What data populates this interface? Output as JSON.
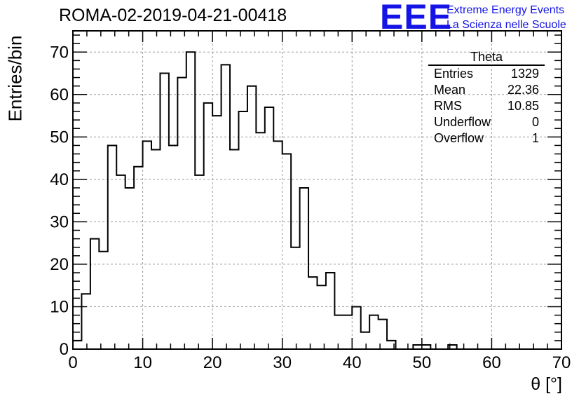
{
  "header": {
    "title": "ROMA-02-2019-04-21-00418",
    "logo_mark": "EEE",
    "logo_line1": "Extreme Energy Events",
    "logo_line2": "La Scienza nelle Scuole"
  },
  "stats_box": {
    "title": "Theta",
    "rows": [
      {
        "label": "Entries",
        "value": "1329"
      },
      {
        "label": "Mean",
        "value": "22.36"
      },
      {
        "label": "RMS",
        "value": "10.85"
      },
      {
        "label": "Underflow",
        "value": "0"
      },
      {
        "label": "Overflow",
        "value": "1"
      }
    ]
  },
  "chart_data": {
    "type": "histogram",
    "xlabel": "θ [°]",
    "ylabel": "Entries/bin",
    "xlim": [
      0,
      70
    ],
    "ylim": [
      0,
      75
    ],
    "xticks": [
      0,
      10,
      20,
      30,
      40,
      50,
      60,
      70
    ],
    "yticks": [
      0,
      10,
      20,
      30,
      40,
      50,
      60,
      70
    ],
    "grid": true,
    "bin_width": 1.25,
    "values": [
      2,
      13,
      26,
      23,
      48,
      41,
      38,
      43,
      49,
      47,
      65,
      48,
      64,
      70,
      41,
      58,
      55,
      67,
      47,
      56,
      62,
      51,
      57,
      49,
      46,
      24,
      38,
      17,
      15,
      18,
      8,
      8,
      10,
      4,
      8,
      7,
      2,
      0,
      0,
      1,
      1,
      0,
      0,
      1,
      0,
      0,
      0,
      0,
      0,
      0,
      0,
      0,
      0,
      0,
      0,
      0
    ],
    "line_color": "#000000"
  }
}
